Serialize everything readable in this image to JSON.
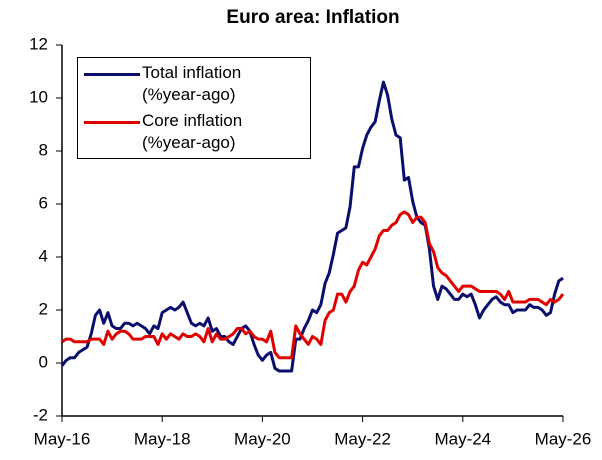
{
  "chart_data": {
    "type": "line",
    "title": "Euro area: Inflation",
    "x": [
      "May-16",
      "Jun-16",
      "Jul-16",
      "Aug-16",
      "Sep-16",
      "Oct-16",
      "Nov-16",
      "Dec-16",
      "Jan-17",
      "Feb-17",
      "Mar-17",
      "Apr-17",
      "May-17",
      "Jun-17",
      "Jul-17",
      "Aug-17",
      "Sep-17",
      "Oct-17",
      "Nov-17",
      "Dec-17",
      "Jan-18",
      "Feb-18",
      "Mar-18",
      "Apr-18",
      "May-18",
      "Jun-18",
      "Jul-18",
      "Aug-18",
      "Sep-18",
      "Oct-18",
      "Nov-18",
      "Dec-18",
      "Jan-19",
      "Feb-19",
      "Mar-19",
      "Apr-19",
      "May-19",
      "Jun-19",
      "Jul-19",
      "Aug-19",
      "Sep-19",
      "Oct-19",
      "Nov-19",
      "Dec-19",
      "Jan-20",
      "Feb-20",
      "Mar-20",
      "Apr-20",
      "May-20",
      "Jun-20",
      "Jul-20",
      "Aug-20",
      "Sep-20",
      "Oct-20",
      "Nov-20",
      "Dec-20",
      "Jan-21",
      "Feb-21",
      "Mar-21",
      "Apr-21",
      "May-21",
      "Jun-21",
      "Jul-21",
      "Aug-21",
      "Sep-21",
      "Oct-21",
      "Nov-21",
      "Dec-21",
      "Jan-22",
      "Feb-22",
      "Mar-22",
      "Apr-22",
      "May-22",
      "Jun-22",
      "Jul-22",
      "Aug-22",
      "Sep-22",
      "Oct-22",
      "Nov-22",
      "Dec-22",
      "Jan-23",
      "Feb-23",
      "Mar-23",
      "Apr-23",
      "May-23",
      "Jun-23",
      "Jul-23",
      "Aug-23",
      "Sep-23",
      "Oct-23",
      "Nov-23",
      "Dec-23",
      "Jan-24",
      "Feb-24",
      "Mar-24",
      "Apr-24",
      "May-24",
      "Jun-24",
      "Jul-24",
      "Aug-24",
      "Sep-24",
      "Oct-24",
      "Nov-24",
      "Dec-24",
      "Jan-25",
      "Feb-25",
      "Mar-25",
      "Apr-25",
      "May-25",
      "Jun-25",
      "Jul-25",
      "Aug-25",
      "Sep-25",
      "Oct-25",
      "Nov-25",
      "Dec-25",
      "Jan-26",
      "Feb-26",
      "Mar-26",
      "Apr-26",
      "May-26"
    ],
    "series": [
      {
        "name": "Total inflation (%year-ago)",
        "color": "#0a0f6e",
        "values": [
          -0.1,
          0.1,
          0.2,
          0.2,
          0.4,
          0.5,
          0.6,
          1.1,
          1.8,
          2.0,
          1.5,
          1.9,
          1.4,
          1.3,
          1.3,
          1.5,
          1.5,
          1.4,
          1.5,
          1.4,
          1.3,
          1.1,
          1.4,
          1.3,
          1.9,
          2.0,
          2.1,
          2.0,
          2.1,
          2.3,
          1.9,
          1.5,
          1.4,
          1.5,
          1.4,
          1.7,
          1.2,
          1.3,
          1.0,
          1.0,
          0.8,
          0.7,
          1.0,
          1.3,
          1.4,
          1.2,
          0.7,
          0.3,
          0.1,
          0.3,
          0.4,
          -0.2,
          -0.3,
          -0.3,
          -0.3,
          -0.3,
          0.9,
          0.9,
          1.3,
          1.6,
          2.0,
          1.9,
          2.2,
          3.0,
          3.4,
          4.1,
          4.9,
          5.0,
          5.1,
          5.9,
          7.4,
          7.4,
          8.1,
          8.6,
          8.9,
          9.1,
          9.9,
          10.6,
          10.1,
          9.2,
          8.6,
          8.5,
          6.9,
          7.0,
          6.1,
          5.5,
          5.3,
          5.2,
          4.3,
          2.9,
          2.4,
          2.9,
          2.8,
          2.6,
          2.4,
          2.4,
          2.6,
          2.5,
          2.6,
          2.2,
          1.7,
          2.0,
          2.2,
          2.4,
          2.5,
          2.3,
          2.2,
          2.2,
          1.9,
          2.0,
          2.0,
          2.0,
          2.2,
          2.1,
          2.1,
          2.0,
          1.8,
          1.9,
          2.6,
          3.1,
          3.2
        ]
      },
      {
        "name": "Core inflation (%year-ago)",
        "color": "#e00000",
        "values": [
          0.8,
          0.9,
          0.9,
          0.8,
          0.8,
          0.8,
          0.8,
          0.9,
          0.9,
          0.9,
          0.7,
          1.2,
          0.9,
          1.1,
          1.2,
          1.2,
          1.1,
          0.9,
          0.9,
          0.9,
          1.0,
          1.0,
          1.0,
          0.7,
          1.1,
          0.9,
          1.1,
          1.0,
          0.9,
          1.1,
          1.0,
          1.0,
          1.1,
          1.0,
          0.8,
          1.3,
          0.8,
          1.1,
          0.9,
          0.9,
          1.0,
          1.1,
          1.3,
          1.3,
          1.1,
          1.2,
          1.0,
          0.9,
          0.9,
          0.8,
          1.2,
          0.4,
          0.2,
          0.2,
          0.2,
          0.2,
          1.4,
          1.1,
          0.9,
          0.7,
          1.0,
          0.9,
          0.7,
          1.6,
          1.9,
          2.0,
          2.6,
          2.6,
          2.3,
          2.7,
          2.9,
          3.5,
          3.8,
          3.7,
          4.0,
          4.3,
          4.8,
          5.0,
          5.0,
          5.2,
          5.3,
          5.6,
          5.7,
          5.6,
          5.3,
          5.5,
          5.5,
          5.3,
          4.5,
          4.2,
          3.6,
          3.4,
          3.3,
          3.1,
          2.9,
          2.7,
          2.9,
          2.9,
          2.9,
          2.8,
          2.7,
          2.7,
          2.7,
          2.7,
          2.7,
          2.6,
          2.4,
          2.7,
          2.3,
          2.3,
          2.3,
          2.3,
          2.4,
          2.4,
          2.4,
          2.3,
          2.2,
          2.4,
          2.3,
          2.4,
          2.6
        ]
      }
    ],
    "xticks": [
      "May-16",
      "May-18",
      "May-20",
      "May-22",
      "May-24",
      "May-26"
    ],
    "ylim": [
      -2,
      12
    ],
    "yticks": [
      -2,
      0,
      2,
      4,
      6,
      8,
      10,
      12
    ],
    "grid": false,
    "legend": "upper left"
  }
}
